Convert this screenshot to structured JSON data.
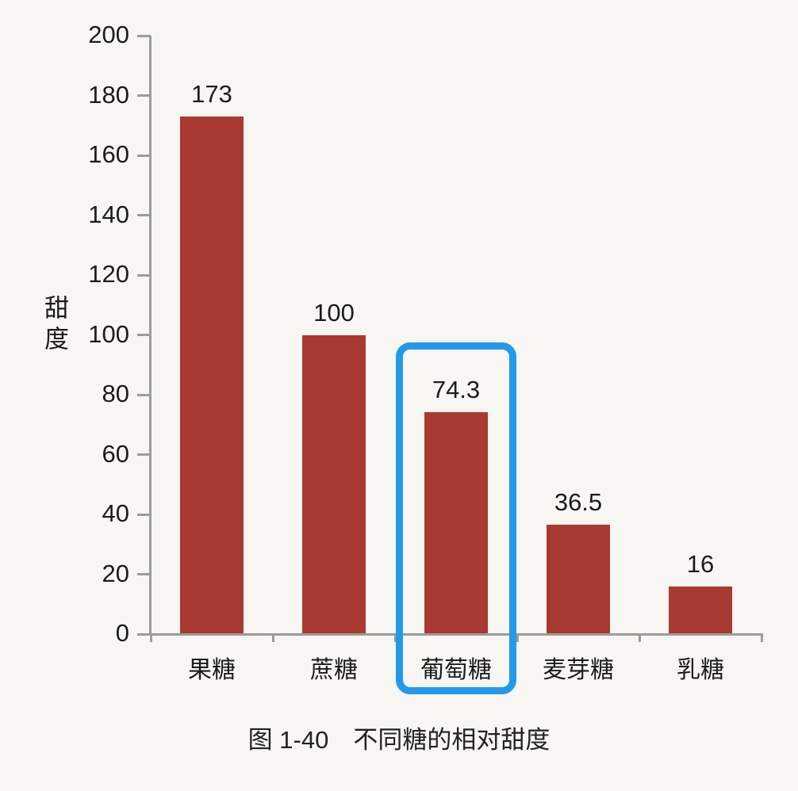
{
  "page": {
    "background": "#f7f6f2",
    "text_color": "#1b1b1b",
    "axis_color": "#9b9b9b"
  },
  "chart_data": {
    "type": "bar",
    "title": "图 1-40　不同糖的相对甜度",
    "ylabel": "甜度",
    "xlabel": "",
    "categories": [
      "果糖",
      "蔗糖",
      "葡萄糖",
      "麦芽糖",
      "乳糖"
    ],
    "values": [
      173,
      100,
      74.3,
      36.5,
      16
    ],
    "value_labels": [
      "173",
      "100",
      "74.3",
      "36.5",
      "16"
    ],
    "ylim": [
      0,
      200
    ],
    "yticks": [
      0,
      20,
      40,
      60,
      80,
      100,
      120,
      140,
      160,
      180,
      200
    ],
    "grid": false,
    "legend": null,
    "bar_color": "#a93a31",
    "highlight": {
      "index": 2,
      "category": "葡萄糖",
      "color": "#2399ea"
    }
  }
}
